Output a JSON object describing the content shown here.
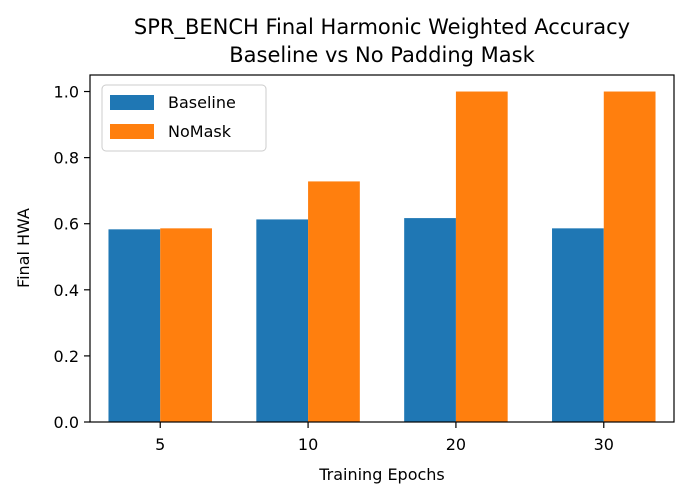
{
  "chart_data": {
    "type": "bar",
    "title": "SPR_BENCH Final Harmonic Weighted Accuracy",
    "subtitle": "Baseline vs No Padding Mask",
    "xlabel": "Training Epochs",
    "ylabel": "Final HWA",
    "categories": [
      "5",
      "10",
      "20",
      "30"
    ],
    "series": [
      {
        "name": "Baseline",
        "color": "#1f77b4",
        "values": [
          0.583,
          0.613,
          0.617,
          0.586
        ]
      },
      {
        "name": "NoMask",
        "color": "#ff7f0e",
        "values": [
          0.586,
          0.728,
          1.0,
          1.0
        ]
      }
    ],
    "ylim": [
      0,
      1.05
    ],
    "yticks": [
      "0.0",
      "0.2",
      "0.4",
      "0.6",
      "0.8",
      "1.0"
    ],
    "legend_position": "top-left",
    "grid": false
  }
}
